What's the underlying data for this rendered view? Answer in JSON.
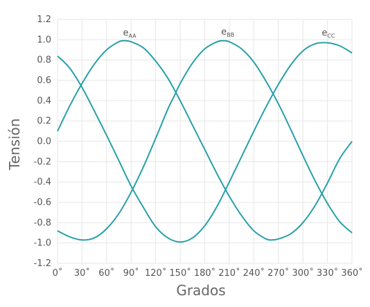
{
  "chart_data": {
    "type": "line",
    "xlabel": "Grados",
    "ylabel": "Tensión",
    "xlim": [
      0,
      360
    ],
    "ylim": [
      -1.2,
      1.2
    ],
    "x_ticks": [
      0,
      30,
      60,
      90,
      120,
      150,
      180,
      210,
      240,
      270,
      300,
      330,
      360
    ],
    "x_tick_labels": [
      "0˚",
      "30˚",
      "60˚",
      "90˚",
      "120˚",
      "150˚",
      "180˚",
      "210˚",
      "240˚",
      "270˚",
      "300˚",
      "330˚",
      "360˚"
    ],
    "y_ticks": [
      1.2,
      1.0,
      0.8,
      0.6,
      0.4,
      0.2,
      0.0,
      -0.2,
      -0.4,
      -0.6,
      -0.8,
      -1.0,
      -1.2
    ],
    "y_tick_labels": [
      "1.2",
      "1.0",
      "0.8",
      "0.6",
      "0.4",
      "0.2",
      "0.0",
      "-0.2",
      "-0.4",
      "-0.6",
      "-0.8",
      "-1.0",
      "-1.2"
    ],
    "grid": true,
    "series_color": "#26a0a8",
    "series": [
      {
        "label_main": "e",
        "label_sub": "AA",
        "label_at": {
          "x": 80,
          "y": 1.04
        },
        "x": [
          0,
          15,
          30,
          45,
          60,
          75,
          82,
          90,
          105,
          120,
          135,
          150,
          165,
          180,
          195,
          210,
          225,
          240,
          255,
          262,
          270,
          285,
          300,
          315,
          330,
          345,
          360
        ],
        "y": [
          0.1,
          0.35,
          0.57,
          0.76,
          0.9,
          0.98,
          0.99,
          0.98,
          0.92,
          0.79,
          0.62,
          0.4,
          0.16,
          -0.08,
          -0.32,
          -0.54,
          -0.73,
          -0.88,
          -0.96,
          -0.97,
          -0.96,
          -0.91,
          -0.8,
          -0.63,
          -0.41,
          -0.17,
          0.0
        ]
      },
      {
        "label_main": "e",
        "label_sub": "BB",
        "label_at": {
          "x": 200,
          "y": 1.05
        },
        "x": [
          0,
          15,
          30,
          45,
          60,
          75,
          90,
          105,
          120,
          135,
          143,
          150,
          165,
          180,
          195,
          203,
          210,
          225,
          240,
          255,
          270,
          285,
          300,
          315,
          330,
          345,
          360
        ],
        "y": [
          -0.88,
          -0.94,
          -0.97,
          -0.95,
          -0.86,
          -0.71,
          -0.5,
          -0.25,
          0.03,
          0.32,
          0.45,
          0.57,
          0.77,
          0.91,
          0.98,
          0.99,
          0.98,
          0.91,
          0.78,
          0.59,
          0.37,
          0.12,
          -0.14,
          -0.39,
          -0.61,
          -0.79,
          -0.9
        ]
      },
      {
        "label_main": "e",
        "label_sub": "CC",
        "label_at": {
          "x": 323,
          "y": 1.04
        },
        "x": [
          0,
          15,
          30,
          45,
          60,
          75,
          90,
          105,
          120,
          135,
          150,
          165,
          180,
          195,
          210,
          225,
          240,
          255,
          270,
          285,
          300,
          315,
          330,
          345,
          360
        ],
        "y": [
          0.84,
          0.72,
          0.53,
          0.3,
          0.06,
          -0.19,
          -0.44,
          -0.65,
          -0.84,
          -0.95,
          -0.99,
          -0.95,
          -0.83,
          -0.64,
          -0.4,
          -0.15,
          0.1,
          0.34,
          0.56,
          0.75,
          0.89,
          0.96,
          0.97,
          0.94,
          0.87
        ]
      }
    ]
  }
}
